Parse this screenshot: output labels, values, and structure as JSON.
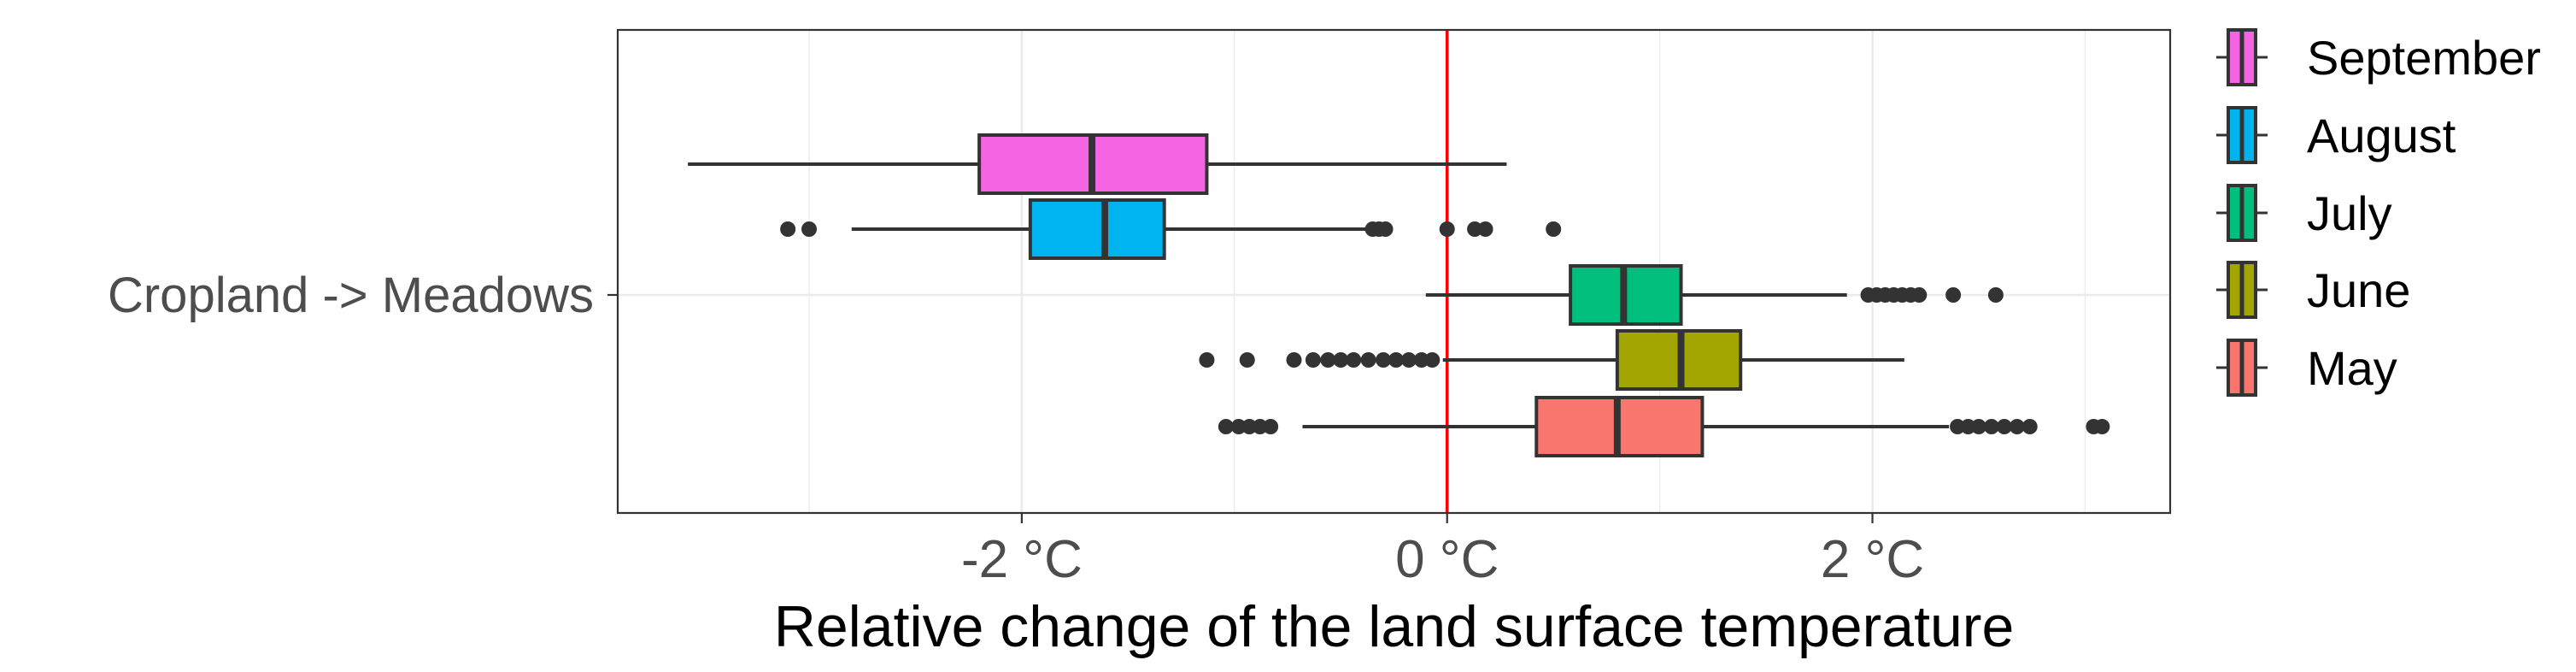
{
  "chart_data": {
    "type": "boxplot",
    "orientation": "horizontal",
    "category": "Cropland -> Meadows",
    "xlabel": "Relative change of the land surface temperature",
    "x_ticks": [
      {
        "value": -2,
        "label": "-2 °C"
      },
      {
        "value": 0,
        "label": "0 °C"
      },
      {
        "value": 2,
        "label": "2 °C"
      }
    ],
    "xlim": [
      -3.9,
      3.4
    ],
    "reference_line": {
      "value": 0,
      "color": "#ff0000"
    },
    "grid": true,
    "legend_position": "right",
    "series": [
      {
        "name": "September",
        "color": "#f564e3",
        "min": -3.57,
        "q1": -2.2,
        "median": -1.67,
        "q3": -1.13,
        "max": 0.28,
        "outliers": []
      },
      {
        "name": "August",
        "color": "#00b4f0",
        "min": -2.8,
        "q1": -1.96,
        "median": -1.61,
        "q3": -1.33,
        "max": -0.38,
        "outliers": [
          -3.1,
          -3.0,
          -0.35,
          -0.32,
          -0.29,
          0.0,
          0.13,
          0.18,
          0.5
        ]
      },
      {
        "name": "July",
        "color": "#00bf7d",
        "min": -0.1,
        "q1": 0.58,
        "median": 0.83,
        "q3": 1.1,
        "max": 1.88,
        "outliers": [
          1.98,
          2.02,
          2.06,
          2.1,
          2.14,
          2.18,
          2.22,
          2.38,
          2.58
        ]
      },
      {
        "name": "June",
        "color": "#a3a500",
        "min": -0.02,
        "q1": 0.8,
        "median": 1.1,
        "q3": 1.38,
        "max": 2.15,
        "outliers": [
          -1.13,
          -0.94,
          -0.72,
          -0.63,
          -0.56,
          -0.5,
          -0.44,
          -0.37,
          -0.3,
          -0.24,
          -0.18,
          -0.12,
          -0.07
        ]
      },
      {
        "name": "May",
        "color": "#f8766d",
        "min": -0.68,
        "q1": 0.42,
        "median": 0.8,
        "q3": 1.2,
        "max": 2.36,
        "outliers": [
          -1.04,
          -0.98,
          -0.93,
          -0.88,
          -0.83,
          2.4,
          2.45,
          2.5,
          2.56,
          2.62,
          2.68,
          2.74,
          3.04,
          3.08
        ]
      }
    ],
    "legend_order": [
      "September",
      "August",
      "July",
      "June",
      "May"
    ]
  }
}
